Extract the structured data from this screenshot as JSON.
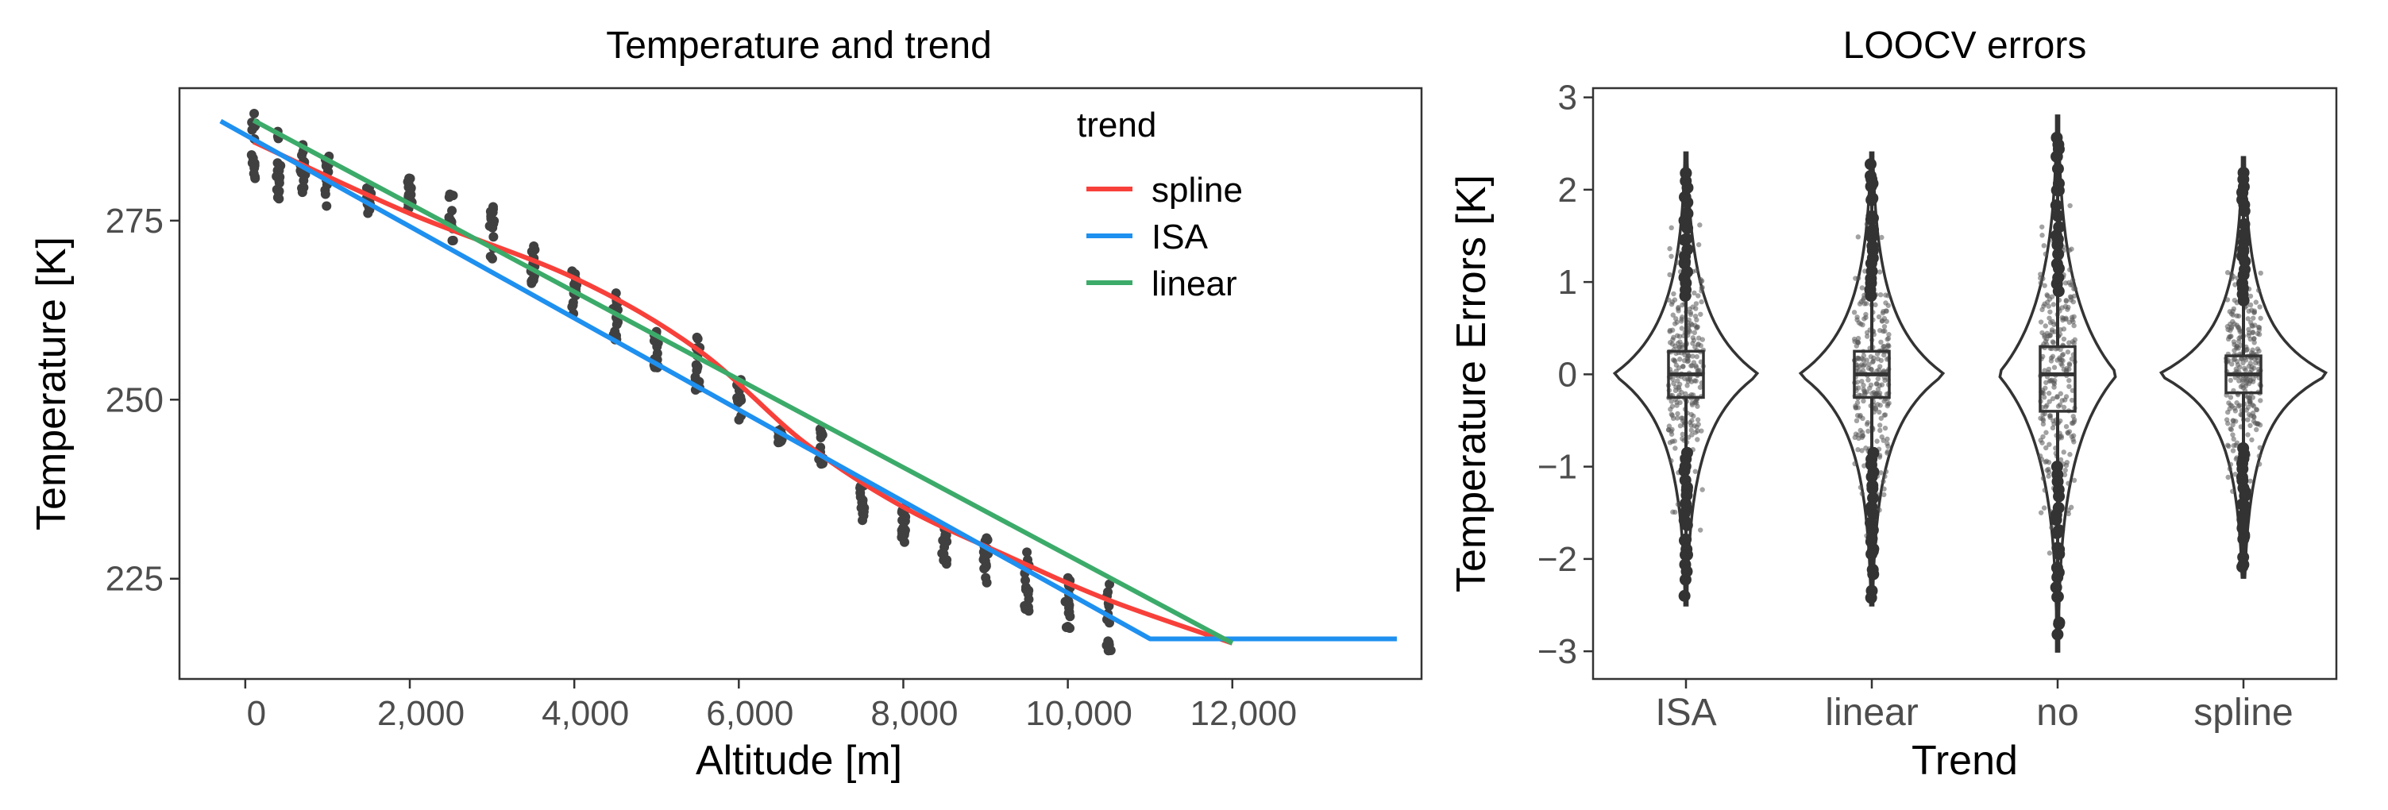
{
  "chart_data": [
    {
      "type": "scatter",
      "title": "Temperature and trend",
      "xlabel": "Altitude [m]",
      "ylabel": "Temperature [K]",
      "xlim": [
        -800,
        14300
      ],
      "ylim": [
        211,
        293.5
      ],
      "xticks": [
        0,
        2000,
        4000,
        6000,
        8000,
        10000,
        12000
      ],
      "xtick_labels": [
        "0",
        "2,000",
        "4,000",
        "6,000",
        "8,000",
        "10,000",
        "12,000"
      ],
      "yticks": [
        225,
        250,
        275
      ],
      "ytick_labels": [
        "225",
        "250",
        "275"
      ],
      "legend": {
        "title": "trend",
        "position": "top-right",
        "entries": [
          {
            "label": "spline",
            "color": "#F8403A"
          },
          {
            "label": "ISA",
            "color": "#1E90F0"
          },
          {
            "label": "linear",
            "color": "#3CAB6A"
          }
        ]
      },
      "point_color": "#404040",
      "point_clusters": [
        {
          "x": 100,
          "y_min": 279,
          "y_max": 290
        },
        {
          "x": 400,
          "y_min": 278,
          "y_max": 288
        },
        {
          "x": 700,
          "y_min": 277,
          "y_max": 286
        },
        {
          "x": 1000,
          "y_min": 277,
          "y_max": 284
        },
        {
          "x": 1500,
          "y_min": 276,
          "y_max": 280
        },
        {
          "x": 2000,
          "y_min": 276,
          "y_max": 281
        },
        {
          "x": 2500,
          "y_min": 272,
          "y_max": 279
        },
        {
          "x": 3000,
          "y_min": 269,
          "y_max": 277
        },
        {
          "x": 3500,
          "y_min": 266,
          "y_max": 272
        },
        {
          "x": 4000,
          "y_min": 262,
          "y_max": 268
        },
        {
          "x": 4500,
          "y_min": 258,
          "y_max": 265
        },
        {
          "x": 5000,
          "y_min": 254,
          "y_max": 260
        },
        {
          "x": 5500,
          "y_min": 251,
          "y_max": 259
        },
        {
          "x": 6000,
          "y_min": 247,
          "y_max": 253
        },
        {
          "x": 6500,
          "y_min": 244,
          "y_max": 246
        },
        {
          "x": 7000,
          "y_min": 241,
          "y_max": 246
        },
        {
          "x": 7500,
          "y_min": 233,
          "y_max": 239
        },
        {
          "x": 8000,
          "y_min": 230,
          "y_max": 235
        },
        {
          "x": 8500,
          "y_min": 227,
          "y_max": 232
        },
        {
          "x": 9000,
          "y_min": 224,
          "y_max": 231
        },
        {
          "x": 9500,
          "y_min": 220,
          "y_max": 229
        },
        {
          "x": 10000,
          "y_min": 218,
          "y_max": 226
        },
        {
          "x": 10500,
          "y_min": 213,
          "y_max": 225
        }
      ],
      "series": [
        {
          "name": "spline",
          "color": "#F8403A",
          "x": [
            100,
            2000,
            4000,
            5500,
            6800,
            8000,
            9300,
            10500,
            12000
          ],
          "y": [
            286,
            276,
            267,
            257,
            244,
            235,
            228,
            222,
            216
          ]
        },
        {
          "name": "ISA",
          "color": "#1E90F0",
          "x": [
            -300,
            11000,
            14000
          ],
          "y": [
            288.9,
            216.6,
            216.6
          ]
        },
        {
          "name": "linear",
          "color": "#3CAB6A",
          "x": [
            100,
            12000
          ],
          "y": [
            289,
            216
          ]
        }
      ]
    },
    {
      "type": "violin",
      "title": "LOOCV errors",
      "xlabel": "Trend",
      "ylabel": "Temperature Errors [K]",
      "categories": [
        "ISA",
        "linear",
        "no",
        "spline"
      ],
      "ylim": [
        -3.3,
        3.1
      ],
      "yticks": [
        -3,
        -2,
        -1,
        0,
        1,
        2,
        3
      ],
      "ytick_labels": [
        "−3",
        "−2",
        "−1",
        "0",
        "1",
        "2",
        "3"
      ],
      "boxes": [
        {
          "category": "ISA",
          "whisker_low": -2.5,
          "q1": -0.25,
          "median": 0.0,
          "q3": 0.25,
          "whisker_high": 2.4,
          "max_density": 0.85
        },
        {
          "category": "linear",
          "whisker_low": -2.5,
          "q1": -0.25,
          "median": 0.0,
          "q3": 0.25,
          "whisker_high": 2.4,
          "max_density": 0.85
        },
        {
          "category": "no",
          "whisker_low": -3.0,
          "q1": -0.4,
          "median": 0.0,
          "q3": 0.3,
          "whisker_high": 2.8,
          "max_density": 0.7
        },
        {
          "category": "spline",
          "whisker_low": -2.2,
          "q1": -0.2,
          "median": 0.0,
          "q3": 0.2,
          "whisker_high": 2.35,
          "max_density": 1.0
        }
      ]
    }
  ]
}
